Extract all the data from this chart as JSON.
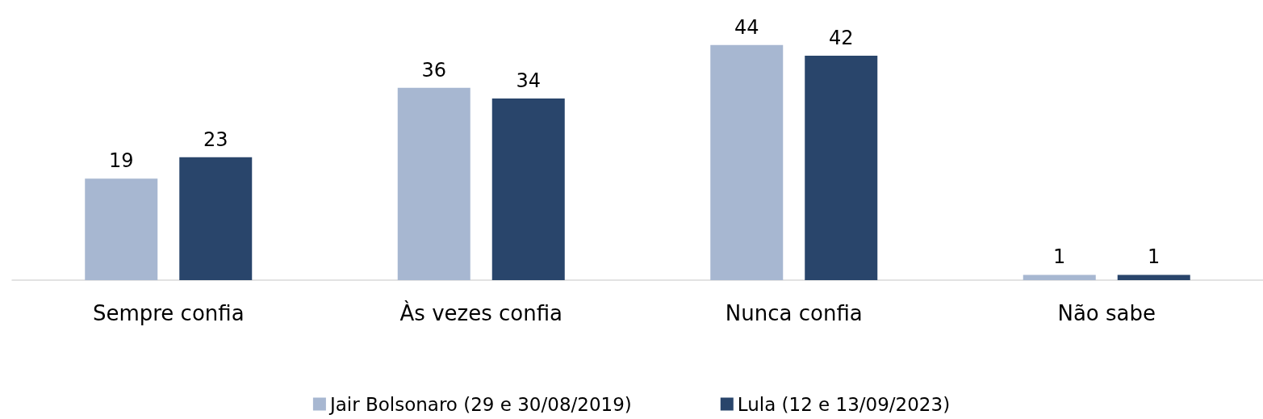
{
  "chart_data": {
    "type": "bar",
    "categories": [
      "Sempre confia",
      "Às vezes confia",
      "Nunca confia",
      "Não sabe"
    ],
    "series": [
      {
        "name": "Jair Bolsonaro (29 e 30/08/2019)",
        "color": "#a7b7d1",
        "values": [
          19,
          36,
          44,
          1
        ]
      },
      {
        "name": "Lula (12 e 13/09/2023)",
        "color": "#29456b",
        "values": [
          23,
          34,
          42,
          1
        ]
      }
    ],
    "data_labels": true,
    "legend": "bottom"
  }
}
